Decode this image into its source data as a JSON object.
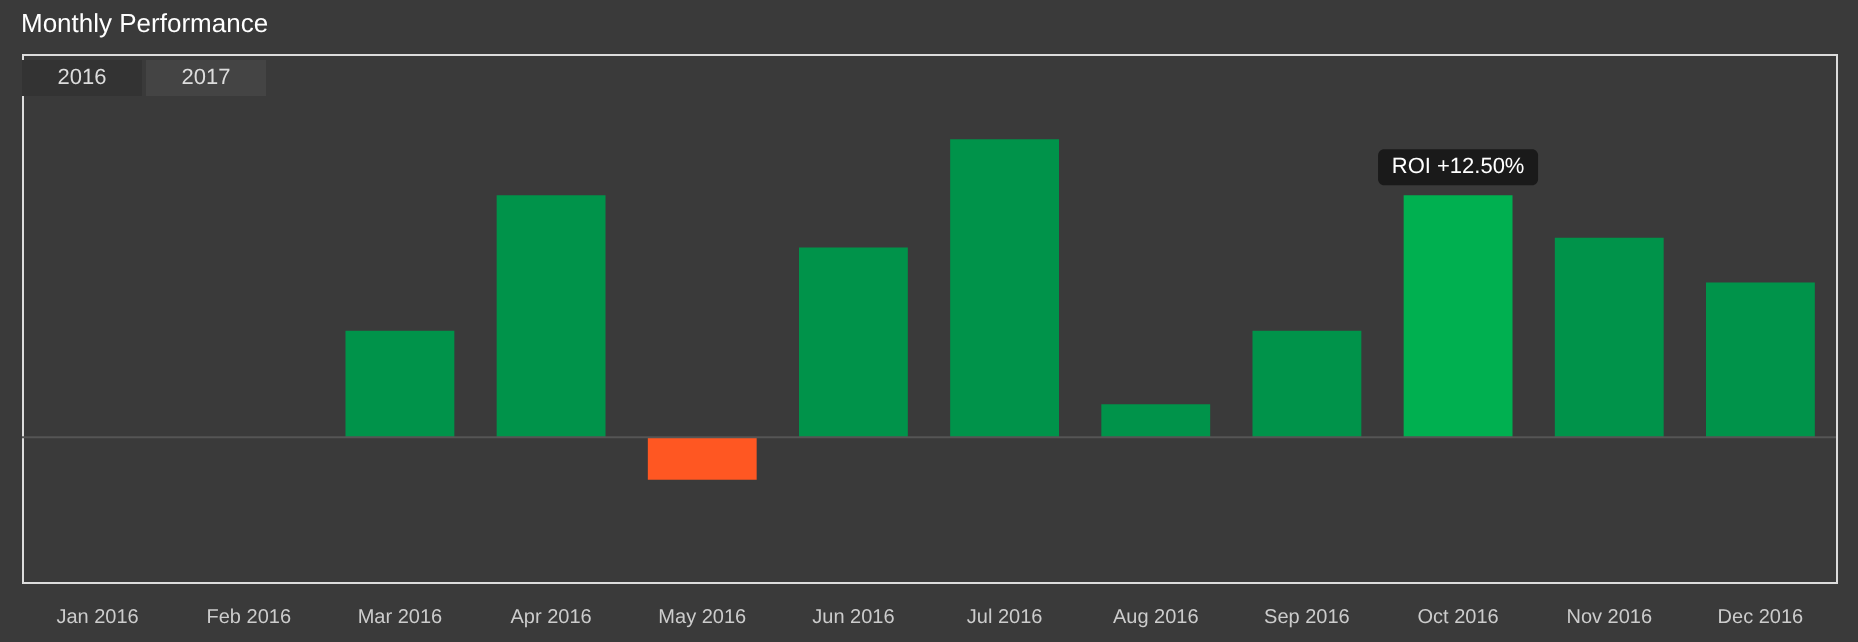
{
  "chart_data": {
    "type": "bar",
    "title": "Monthly Performance",
    "categories": [
      "Jan 2016",
      "Feb 2016",
      "Mar 2016",
      "Apr 2016",
      "May 2016",
      "Jun 2016",
      "Jul 2016",
      "Aug 2016",
      "Sep 2016",
      "Oct 2016",
      "Nov 2016",
      "Dec 2016"
    ],
    "values": [
      null,
      null,
      5.5,
      12.5,
      -2.2,
      9.8,
      15.4,
      1.7,
      5.5,
      12.5,
      10.3,
      8.0
    ],
    "colors": [
      "#00934a",
      "#00934a",
      "#00934a",
      "#00934a",
      "#ff5722",
      "#00934a",
      "#00934a",
      "#00934a",
      "#00934a",
      "#00b050",
      "#00934a",
      "#00934a"
    ],
    "tick_labels": "x",
    "value_labels": [
      null,
      null,
      null,
      null,
      null,
      null,
      null,
      null,
      null,
      "ROI +12.50%",
      null,
      null
    ],
    "annotations": [
      "2016",
      "2017"
    ]
  }
}
